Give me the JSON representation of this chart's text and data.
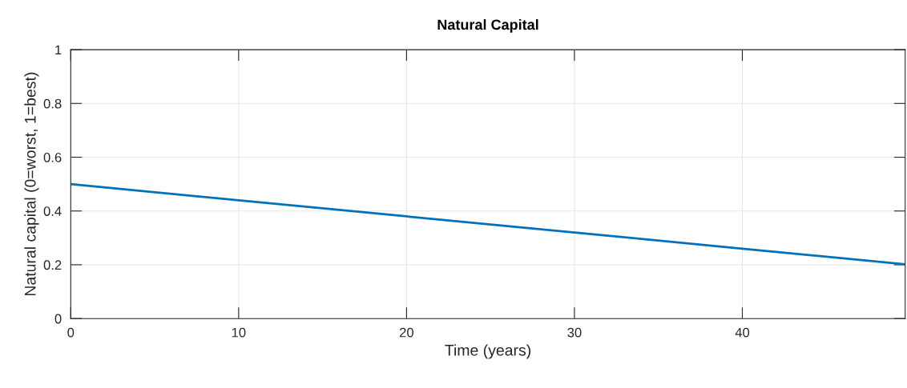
{
  "chart_data": {
    "type": "line",
    "title": "Natural Capital",
    "xlabel": "Time (years)",
    "ylabel": "Natural capital (0=worst, 1=best)",
    "x": [
      0,
      10,
      20,
      30,
      40,
      49.7
    ],
    "series": [
      {
        "color": "#0072bd",
        "values": [
          0.5,
          0.44,
          0.38,
          0.32,
          0.26,
          0.202
        ]
      }
    ],
    "xlim": [
      0,
      49.7
    ],
    "xticks": [
      0,
      10,
      20,
      30,
      40
    ],
    "ylim": [
      0,
      1
    ],
    "yticks": [
      0,
      0.2,
      0.4,
      0.6,
      0.8,
      1
    ],
    "grid": true,
    "line_style": "solid"
  }
}
